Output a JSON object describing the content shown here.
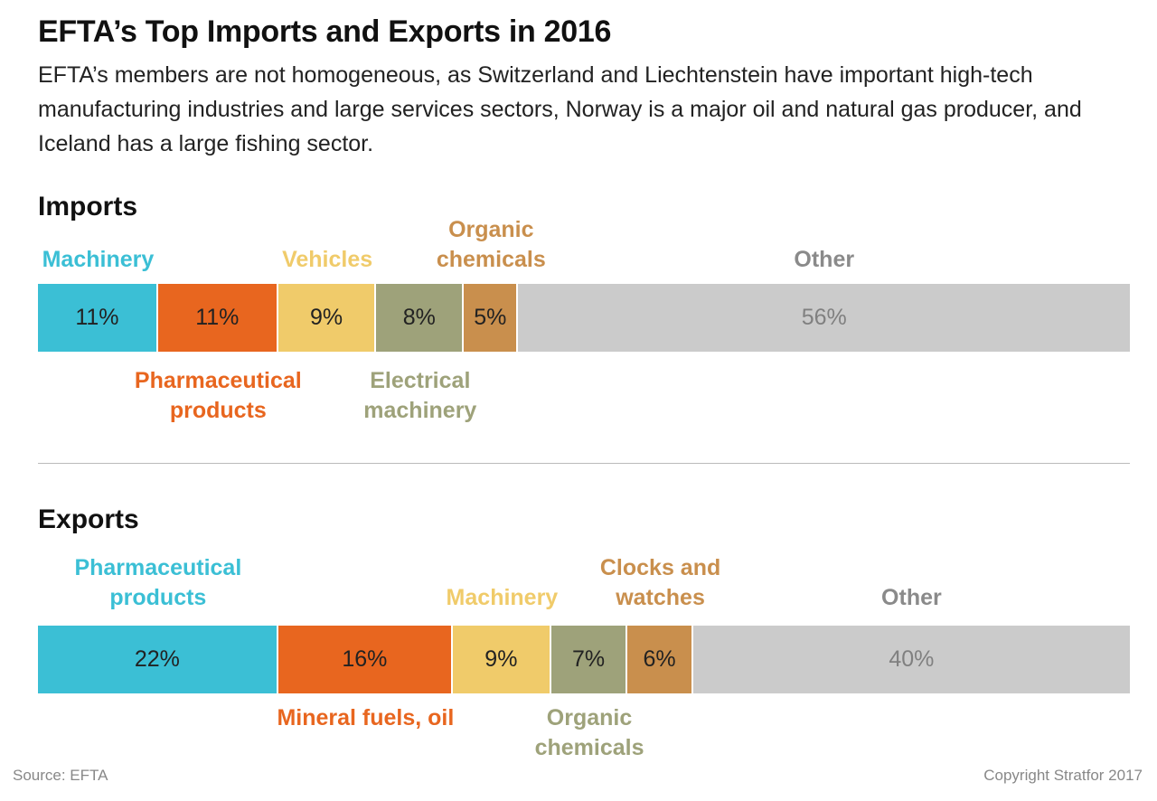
{
  "title": "EFTA’s Top Imports and Exports in 2016",
  "subtitle": "EFTA’s members are not homogeneous, as Switzerland and Liechtenstein have important high-tech manufacturing industries and large services sectors, Norway is a major oil and natural gas producer, and Iceland has a large fishing sector.",
  "source": "Source: EFTA",
  "copyright": "Copyright Stratfor 2017",
  "colors": {
    "cyan": "#3bbfd5",
    "orange": "#e8661f",
    "yellow": "#f0cb6a",
    "olive": "#9ea27a",
    "tan": "#c98f4d",
    "gray": "#cbcbcb",
    "other_label": "#8a8a8a",
    "other_value": "#808080"
  },
  "chart_data": [
    {
      "type": "bar",
      "stacked": true,
      "title": "Imports",
      "categories": [
        "Machinery",
        "Pharmaceutical products",
        "Vehicles",
        "Electrical machinery",
        "Organic chemicals",
        "Other"
      ],
      "values": [
        11,
        11,
        9,
        8,
        5,
        56
      ],
      "value_labels": [
        "11%",
        "11%",
        "9%",
        "8%",
        "5%",
        "56%"
      ],
      "label_positions": [
        "above",
        "below",
        "above",
        "below",
        "above",
        "above"
      ],
      "colors": [
        "#3bbfd5",
        "#e8661f",
        "#f0cb6a",
        "#9ea27a",
        "#c98f4d",
        "#cbcbcb"
      ],
      "unit": "%"
    },
    {
      "type": "bar",
      "stacked": true,
      "title": "Exports",
      "categories": [
        "Pharmaceutical products",
        "Mineral fuels, oil",
        "Machinery",
        "Organic chemicals",
        "Clocks and watches",
        "Other"
      ],
      "values": [
        22,
        16,
        9,
        7,
        6,
        40
      ],
      "value_labels": [
        "22%",
        "16%",
        "9%",
        "7%",
        "6%",
        "40%"
      ],
      "label_positions": [
        "above",
        "below",
        "above",
        "below",
        "above",
        "above"
      ],
      "colors": [
        "#3bbfd5",
        "#e8661f",
        "#f0cb6a",
        "#9ea27a",
        "#c98f4d",
        "#cbcbcb"
      ],
      "unit": "%"
    }
  ]
}
